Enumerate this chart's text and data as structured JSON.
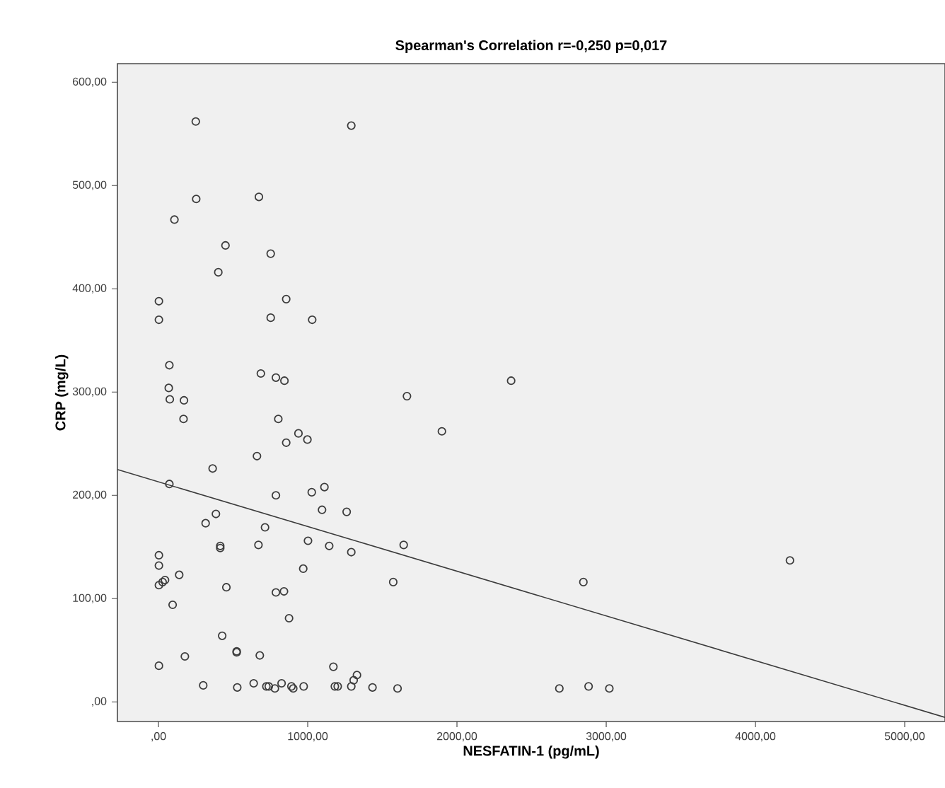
{
  "chart_data": {
    "type": "scatter",
    "title": "Spearman's Correlation r=-0,250  p=0,017",
    "xlabel": "NESFATIN-1 (pg/mL)",
    "ylabel": "CRP (mg/L)",
    "xlim": [
      -275,
      5270
    ],
    "ylim": [
      -19,
      618
    ],
    "xticks": [
      {
        "value": 0,
        "label": ",00"
      },
      {
        "value": 1000,
        "label": "1000,00"
      },
      {
        "value": 2000,
        "label": "2000,00"
      },
      {
        "value": 3000,
        "label": "3000,00"
      },
      {
        "value": 4000,
        "label": "4000,00"
      },
      {
        "value": 5000,
        "label": "5000,00"
      }
    ],
    "yticks": [
      {
        "value": 0,
        "label": ",00"
      },
      {
        "value": 100,
        "label": "100,00"
      },
      {
        "value": 200,
        "label": "200,00"
      },
      {
        "value": 300,
        "label": "300,00"
      },
      {
        "value": 400,
        "label": "400,00"
      },
      {
        "value": 500,
        "label": "500,00"
      },
      {
        "value": 600,
        "label": "600,00"
      }
    ],
    "grid": false,
    "series": [
      {
        "marker": "circle",
        "color": "#3c3c3c",
        "x": [
          250,
          1292,
          253,
          673,
          107,
          449,
          752,
          401,
          3,
          856,
          3,
          752,
          1030,
          73,
          686,
          787,
          844,
          1665,
          2363,
          69,
          76,
          171,
          168,
          803,
          1899,
          938,
          856,
          998,
          660,
          363,
          73,
          787,
          1027,
          1112,
          1096,
          1261,
          385,
          316,
          714,
          414,
          414,
          670,
          1002,
          1144,
          1292,
          1643,
          3,
          3,
          3,
          28,
          44,
          139,
          970,
          1573,
          455,
          787,
          841,
          95,
          875,
          427,
          524,
          524,
          679,
          177,
          3,
          1172,
          1330,
          1308,
          300,
          528,
          638,
          723,
          739,
          780,
          825,
          891,
          903,
          973,
          1182,
          1201,
          1292,
          1434,
          1602,
          2847,
          4231,
          2686,
          2882,
          3021
        ],
        "values": [
          562,
          558,
          487,
          489,
          467,
          442,
          434,
          416,
          388,
          390,
          370,
          372,
          370,
          326,
          318,
          314,
          311,
          296,
          311,
          304,
          293,
          292,
          274,
          274,
          262,
          260,
          251,
          254,
          238,
          226,
          211,
          200,
          203,
          208,
          186,
          184,
          182,
          173,
          169,
          151,
          149,
          152,
          156,
          151,
          145,
          152,
          142,
          132,
          113,
          116,
          118,
          123,
          129,
          116,
          111,
          106,
          107,
          94,
          81,
          64,
          49,
          48,
          45,
          44,
          35,
          34,
          26,
          21,
          16,
          14,
          18,
          15,
          15,
          13,
          18,
          15,
          13,
          15,
          15,
          15,
          15,
          14,
          13,
          116,
          137,
          13,
          15,
          13
        ]
      },
      {
        "type": "line",
        "marker": "none",
        "color": "#3c3c3c",
        "line_style": "solid",
        "x": [
          -275,
          5270
        ],
        "values": [
          225,
          -15
        ]
      }
    ]
  }
}
